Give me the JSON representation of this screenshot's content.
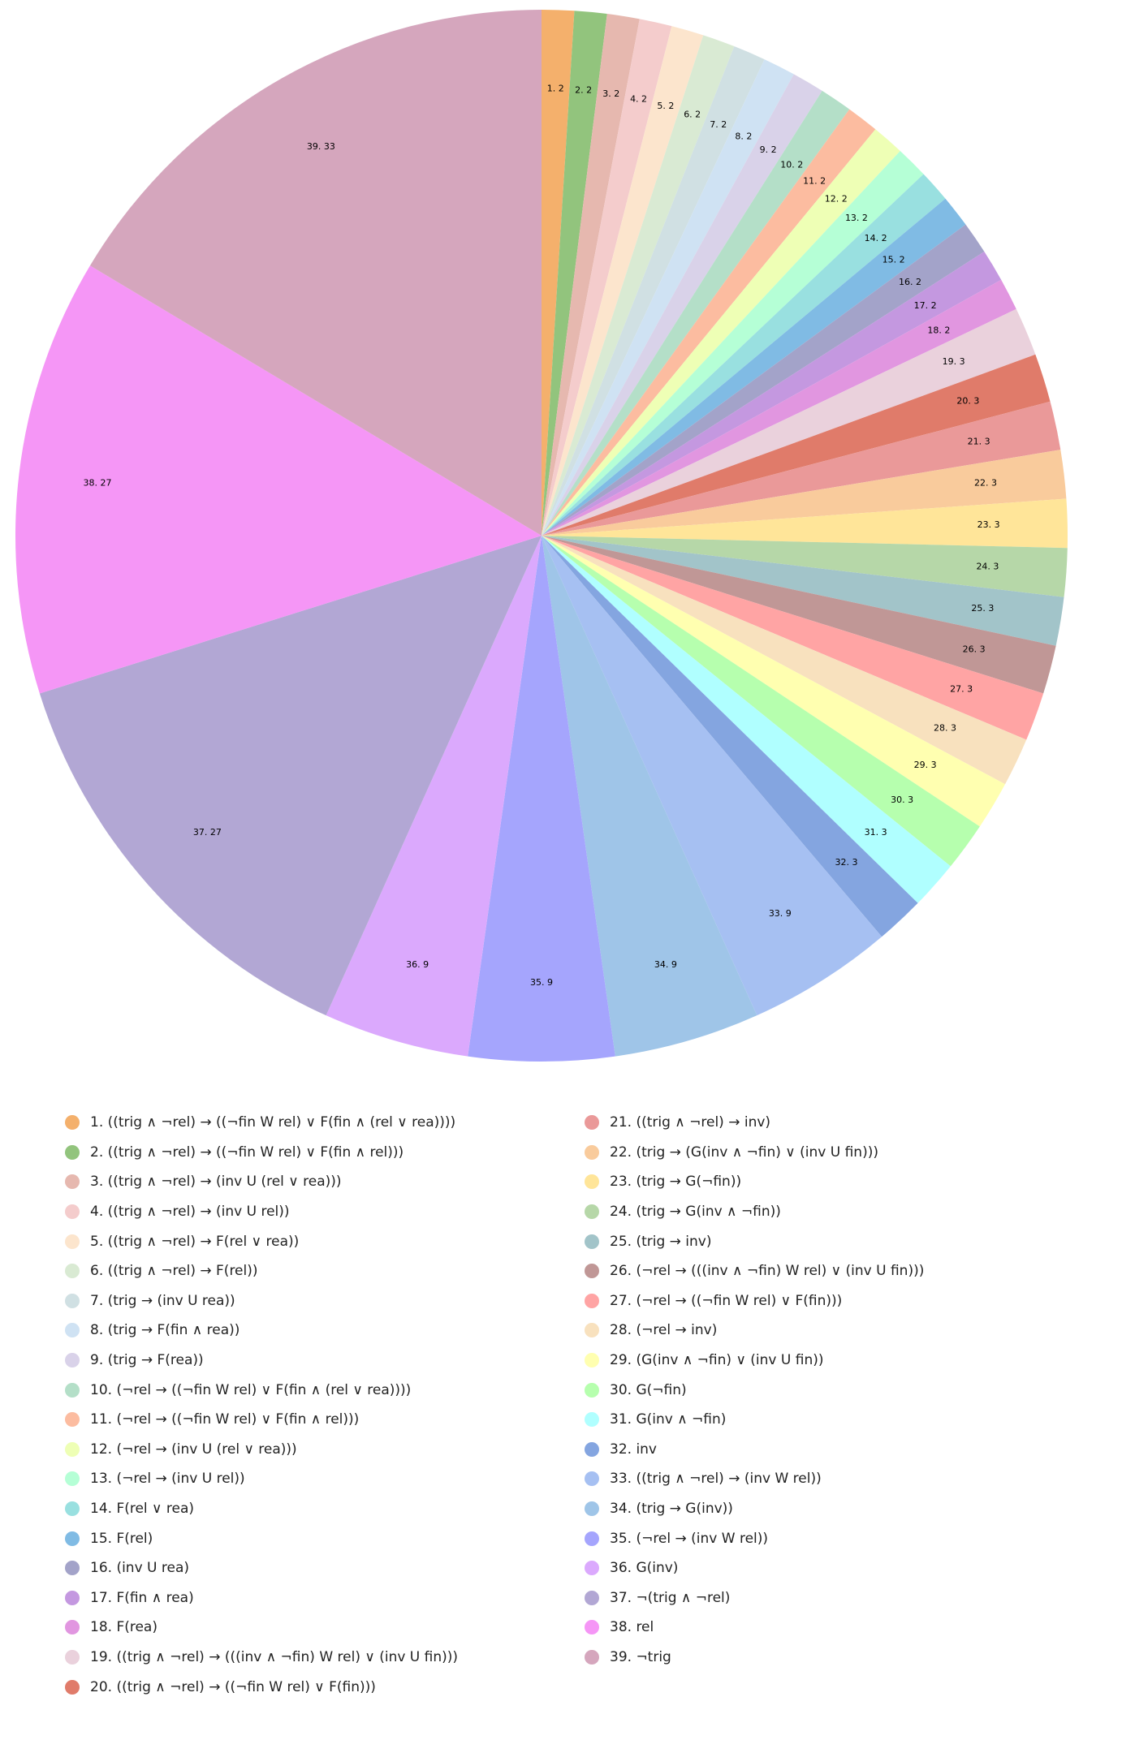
{
  "chart_data": {
    "type": "pie",
    "start_angle": "12 o'clock",
    "direction": "clockwise",
    "legend_position": "bottom",
    "slices": [
      {
        "label": "1",
        "value": 2,
        "legend": "1. ((trig ∧ ¬rel) → ((¬fin W rel) ∨ F(fin ∧ (rel ∨ rea))))",
        "data_label": "1. 2",
        "color": "#f4b06c"
      },
      {
        "label": "2",
        "value": 2,
        "legend": "2. ((trig ∧ ¬rel) → ((¬fin W rel) ∨ F(fin ∧ rel)))",
        "data_label": "2. 2",
        "color": "#92c47d"
      },
      {
        "label": "3",
        "value": 2,
        "legend": "3. ((trig ∧ ¬rel) → (inv U (rel ∨ rea)))",
        "data_label": "3. 2",
        "color": "#e6b8af"
      },
      {
        "label": "4",
        "value": 2,
        "legend": "4. ((trig ∧ ¬rel) → (inv U rel))",
        "data_label": "4. 2",
        "color": "#f4cccc"
      },
      {
        "label": "5",
        "value": 2,
        "legend": "5. ((trig ∧ ¬rel) → F(rel ∨ rea))",
        "data_label": "5. 2",
        "color": "#fce5cd"
      },
      {
        "label": "6",
        "value": 2,
        "legend": "6. ((trig ∧ ¬rel) → F(rel))",
        "data_label": "6. 2",
        "color": "#d9ead3"
      },
      {
        "label": "7",
        "value": 2,
        "legend": "7. (trig → (inv U rea))",
        "data_label": "7. 2",
        "color": "#d0e0e3"
      },
      {
        "label": "8",
        "value": 2,
        "legend": "8. (trig → F(fin ∧ rea))",
        "data_label": "8. 2",
        "color": "#cfe2f3"
      },
      {
        "label": "9",
        "value": 2,
        "legend": "9. (trig → F(rea))",
        "data_label": "9. 2",
        "color": "#d9d2e9"
      },
      {
        "label": "10",
        "value": 2,
        "legend": "10. (¬rel → ((¬fin W rel) ∨ F(fin ∧ (rel ∨ rea))))",
        "data_label": "10. 2",
        "color": "#b4dfc8"
      },
      {
        "label": "11",
        "value": 2,
        "legend": "11. (¬rel → ((¬fin W rel) ∨ F(fin ∧ rel)))",
        "data_label": "11. 2",
        "color": "#fcbca0"
      },
      {
        "label": "12",
        "value": 2,
        "legend": "12. (¬rel → (inv U (rel ∨ rea)))",
        "data_label": "12. 2",
        "color": "#eeffb5"
      },
      {
        "label": "13",
        "value": 2,
        "legend": "13. (¬rel → (inv U rel))",
        "data_label": "13. 2",
        "color": "#b5ffd6"
      },
      {
        "label": "14",
        "value": 2,
        "legend": "14. F(rel ∨ rea)",
        "data_label": "14. 2",
        "color": "#99e0e0"
      },
      {
        "label": "15",
        "value": 2,
        "legend": "15. F(rel)",
        "data_label": "15. 2",
        "color": "#80bbe4"
      },
      {
        "label": "16",
        "value": 2,
        "legend": "16. (inv U rea)",
        "data_label": "16. 2",
        "color": "#a3a3c9"
      },
      {
        "label": "17",
        "value": 2,
        "legend": "17. F(fin ∧ rea)",
        "data_label": "17. 2",
        "color": "#c498e0"
      },
      {
        "label": "18",
        "value": 2,
        "legend": "18. F(rea)",
        "data_label": "18. 2",
        "color": "#e196e0"
      },
      {
        "label": "19",
        "value": 3,
        "legend": "19. ((trig ∧ ¬rel) → (((inv ∧ ¬fin) W rel) ∨ (inv U fin)))",
        "data_label": "19. 3",
        "color": "#ead1dc"
      },
      {
        "label": "20",
        "value": 3,
        "legend": "20. ((trig ∧ ¬rel) → ((¬fin W rel) ∨ F(fin)))",
        "data_label": "20. 3",
        "color": "#e07b6a"
      },
      {
        "label": "21",
        "value": 3,
        "legend": "21. ((trig ∧ ¬rel) → inv)",
        "data_label": "21. 3",
        "color": "#ea9999"
      },
      {
        "label": "22",
        "value": 3,
        "legend": "22. (trig → (G(inv ∧ ¬fin) ∨ (inv U fin)))",
        "data_label": "22. 3",
        "color": "#f9cb9c"
      },
      {
        "label": "23",
        "value": 3,
        "legend": "23. (trig → G(¬fin))",
        "data_label": "23. 3",
        "color": "#ffe599"
      },
      {
        "label": "24",
        "value": 3,
        "legend": "24. (trig → G(inv ∧ ¬fin))",
        "data_label": "24. 3",
        "color": "#b6d7a8"
      },
      {
        "label": "25",
        "value": 3,
        "legend": "25. (trig → inv)",
        "data_label": "25. 3",
        "color": "#a2c4c9"
      },
      {
        "label": "26",
        "value": 3,
        "legend": "26. (¬rel → (((inv ∧ ¬fin) W rel) ∨ (inv U fin)))",
        "data_label": "26. 3",
        "color": "#c09796"
      },
      {
        "label": "27",
        "value": 3,
        "legend": "27. (¬rel → ((¬fin W rel) ∨ F(fin)))",
        "data_label": "27. 3",
        "color": "#ffa4a4"
      },
      {
        "label": "28",
        "value": 3,
        "legend": "28. (¬rel → inv)",
        "data_label": "28. 3",
        "color": "#f8e1be"
      },
      {
        "label": "29",
        "value": 3,
        "legend": "29. (G(inv ∧ ¬fin) ∨ (inv U fin))",
        "data_label": "29. 3",
        "color": "#ffffb0"
      },
      {
        "label": "30",
        "value": 3,
        "legend": "30. G(¬fin)",
        "data_label": "30. 3",
        "color": "#b6ffae"
      },
      {
        "label": "31",
        "value": 3,
        "legend": "31. G(inv ∧ ¬fin)",
        "data_label": "31. 3",
        "color": "#b0ffff"
      },
      {
        "label": "32",
        "value": 3,
        "legend": "32. inv",
        "data_label": "32. 3",
        "color": "#84a5e0"
      },
      {
        "label": "33",
        "value": 9,
        "legend": "33. ((trig ∧ ¬rel) → (inv W rel))",
        "data_label": "33. 9",
        "color": "#a6c0f2"
      },
      {
        "label": "34",
        "value": 9,
        "legend": "34. (trig → G(inv))",
        "data_label": "34. 9",
        "color": "#9fc5e8"
      },
      {
        "label": "35",
        "value": 9,
        "legend": "35. (¬rel → (inv W rel))",
        "data_label": "35. 9",
        "color": "#a5a5fd"
      },
      {
        "label": "36",
        "value": 9,
        "legend": "36. G(inv)",
        "data_label": "36. 9",
        "color": "#dba9fd"
      },
      {
        "label": "37",
        "value": 27,
        "legend": "37. ¬(trig ∧ ¬rel)",
        "data_label": "37. 27",
        "color": "#b2a7d4"
      },
      {
        "label": "38",
        "value": 27,
        "legend": "38. rel",
        "data_label": "38. 27",
        "color": "#f596f6"
      },
      {
        "label": "39",
        "value": 33,
        "legend": "39. ¬trig",
        "data_label": "39. 33",
        "color": "#d5a6bd"
      }
    ]
  }
}
